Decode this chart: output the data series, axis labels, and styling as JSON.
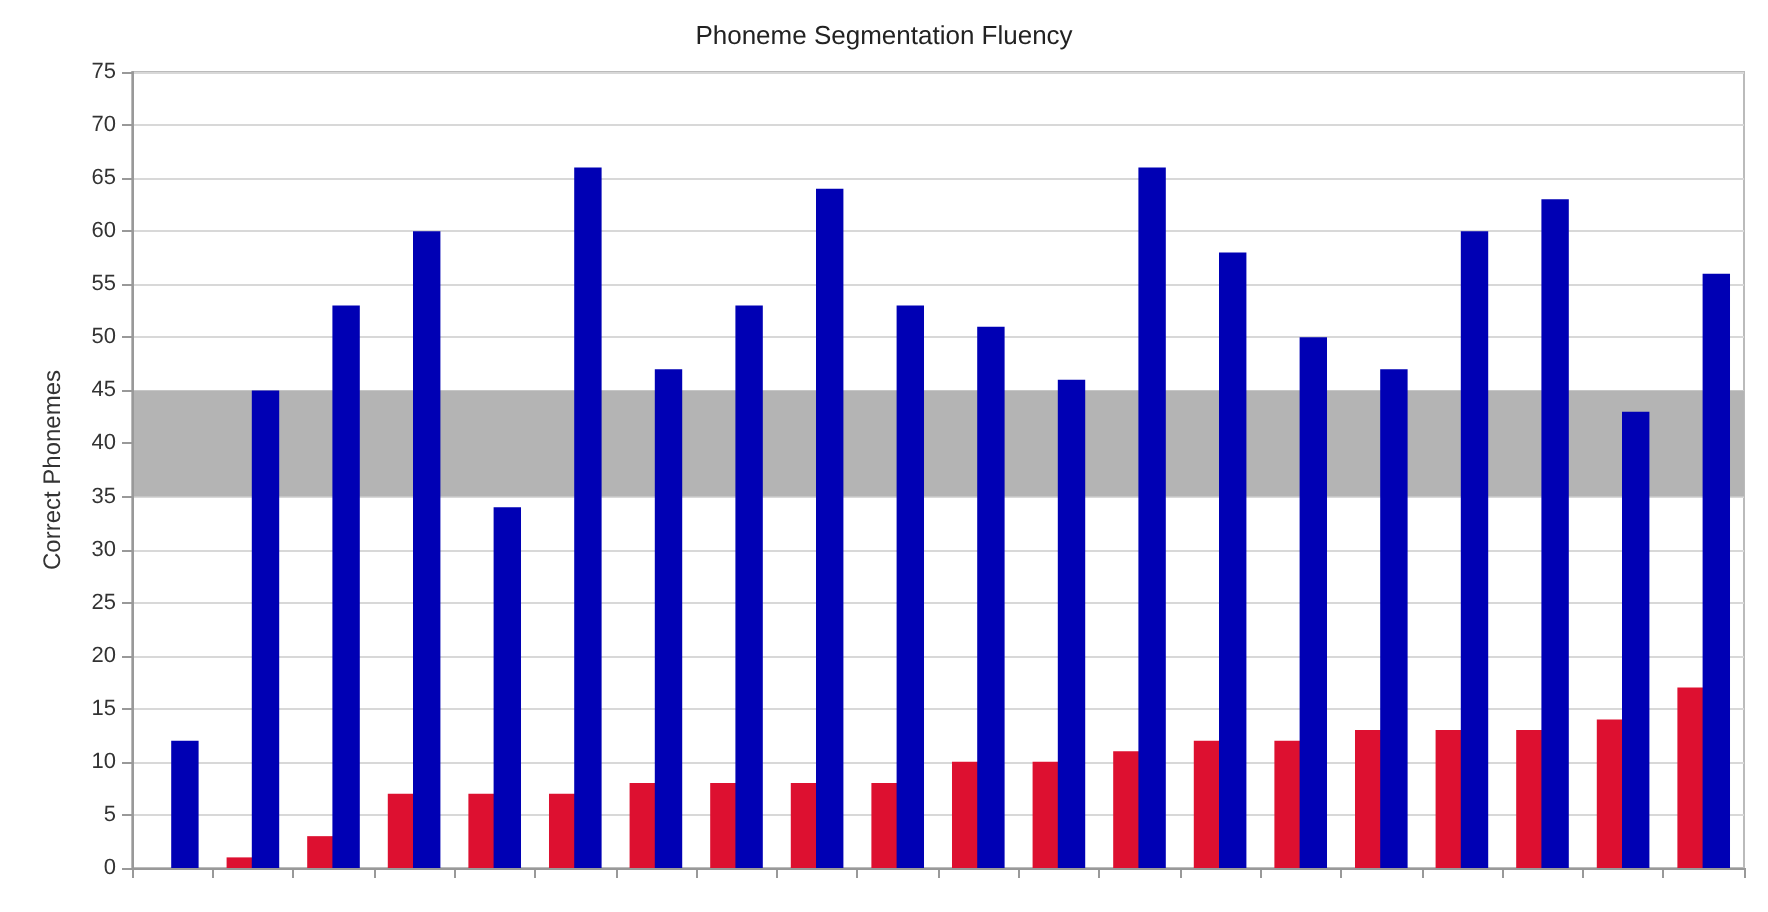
{
  "chart_data": {
    "type": "bar",
    "title": "Phoneme Segmentation Fluency",
    "ylabel": "Correct Phonemes",
    "categories": [
      null,
      null,
      null,
      null,
      null,
      null,
      null,
      null,
      null,
      null,
      null,
      null,
      null,
      null,
      null,
      null,
      null,
      null,
      null,
      null
    ],
    "series": [
      {
        "color": "#dd1030",
        "values": [
          null,
          1,
          3,
          7,
          7,
          7,
          8,
          8,
          8,
          8,
          10,
          10,
          11,
          12,
          12,
          13,
          13,
          13,
          14,
          17
        ]
      },
      {
        "color": "#0000b4",
        "values": [
          12,
          45,
          53,
          60,
          34,
          66,
          47,
          53,
          64,
          53,
          51,
          46,
          66,
          58,
          50,
          47,
          60,
          63,
          43,
          56
        ]
      }
    ],
    "ylim": [
      0,
      75
    ],
    "yticks": [
      0,
      5,
      10,
      15,
      20,
      25,
      30,
      35,
      40,
      45,
      50,
      55,
      60,
      65,
      70,
      75
    ],
    "grid": "y",
    "bands": [
      {
        "axis": "y",
        "from": 35,
        "to": 45,
        "color": "#b4b4b4"
      }
    ]
  }
}
